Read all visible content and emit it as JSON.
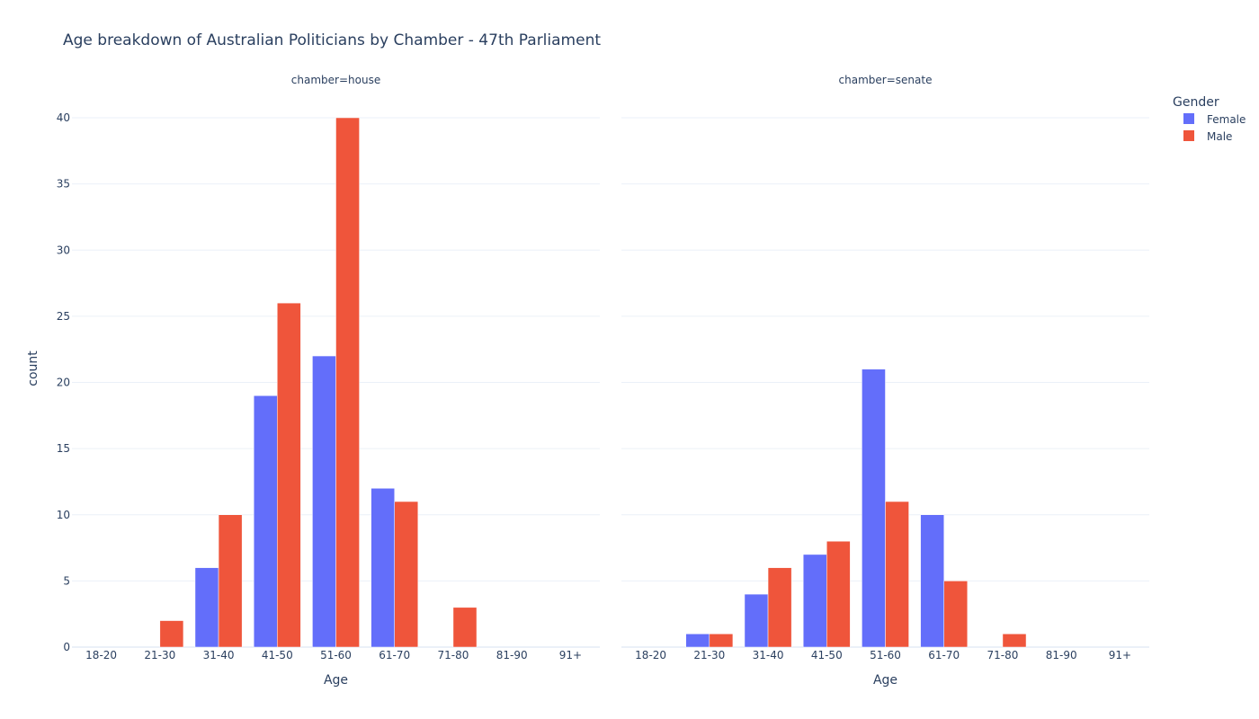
{
  "chart_data": {
    "type": "bar",
    "title": "Age breakdown of Australian Politicians by Chamber - 47th Parliament",
    "ylabel": "count",
    "ylim": [
      0,
      40
    ],
    "yticks": [
      "0",
      "5",
      "10",
      "15",
      "20",
      "25",
      "30",
      "35",
      "40"
    ],
    "grid": true,
    "legend": {
      "title": "Gender",
      "placement": "top-right",
      "entries": [
        {
          "name": "Female",
          "color": "#636efa"
        },
        {
          "name": "Male",
          "color": "#ef553b"
        }
      ]
    },
    "panels": [
      {
        "facet_label": "chamber=house",
        "xlabel": "Age",
        "categories": [
          "18-20",
          "21-30",
          "31-40",
          "41-50",
          "51-60",
          "61-70",
          "71-80",
          "81-90",
          "91+"
        ],
        "series": [
          {
            "name": "Female",
            "color": "#636efa",
            "values": [
              0,
              0,
              6,
              19,
              22,
              12,
              0,
              0,
              0
            ]
          },
          {
            "name": "Male",
            "color": "#ef553b",
            "values": [
              0,
              2,
              10,
              26,
              40,
              11,
              3,
              0,
              0
            ]
          }
        ]
      },
      {
        "facet_label": "chamber=senate",
        "xlabel": "Age",
        "categories": [
          "18-20",
          "21-30",
          "31-40",
          "41-50",
          "51-60",
          "61-70",
          "71-80",
          "81-90",
          "91+"
        ],
        "series": [
          {
            "name": "Female",
            "color": "#636efa",
            "values": [
              0,
              1,
              4,
              7,
              21,
              10,
              0,
              0,
              0
            ]
          },
          {
            "name": "Male",
            "color": "#ef553b",
            "values": [
              0,
              1,
              6,
              8,
              11,
              5,
              1,
              0,
              0
            ]
          }
        ]
      }
    ]
  }
}
